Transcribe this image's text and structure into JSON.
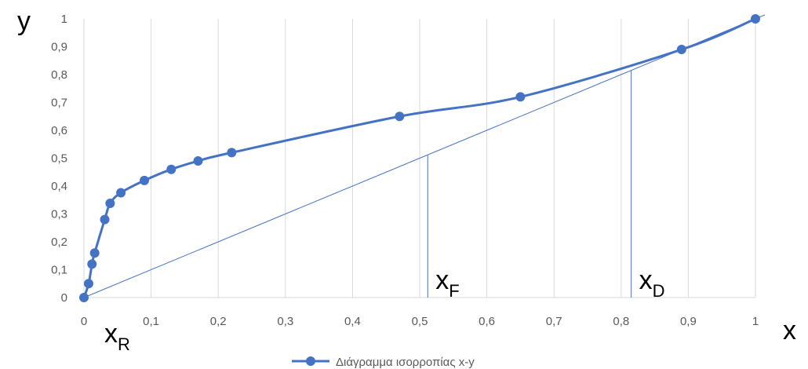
{
  "chart_data": {
    "type": "line",
    "title": "",
    "xlabel": "x",
    "ylabel": "y",
    "xlim": [
      0,
      1
    ],
    "ylim": [
      0,
      1
    ],
    "x_ticks": [
      "0",
      "0,1",
      "0,2",
      "0,3",
      "0,4",
      "0,5",
      "0,6",
      "0,7",
      "0,8",
      "0,9",
      "1"
    ],
    "y_ticks": [
      "0",
      "0,1",
      "0,2",
      "0,3",
      "0,4",
      "0,5",
      "0,6",
      "0,7",
      "0,8",
      "0,9",
      "1"
    ],
    "grid": "vertical",
    "series": [
      {
        "name": "Διάγραμμα ισορροπίας x-y",
        "color": "#4472C4",
        "x": [
          0,
          0.007,
          0.012,
          0.016,
          0.031,
          0.039,
          0.055,
          0.09,
          0.13,
          0.17,
          0.22,
          0.47,
          0.65,
          0.89,
          1.0
        ],
        "y": [
          0,
          0.05,
          0.12,
          0.16,
          0.28,
          0.338,
          0.376,
          0.42,
          0.46,
          0.49,
          0.52,
          0.65,
          0.72,
          0.89,
          1.0
        ]
      }
    ],
    "diagonal": {
      "x": [
        0,
        1
      ],
      "y": [
        0,
        1
      ]
    },
    "markers": [
      {
        "label": "x",
        "sub": "F",
        "x": 0.512,
        "y_top": 0.51
      },
      {
        "label": "x",
        "sub": "D",
        "x": 0.815,
        "y_top": 0.815
      }
    ],
    "x_r_label": {
      "label": "x",
      "sub": "R"
    },
    "legend": {
      "position": "bottom"
    }
  }
}
